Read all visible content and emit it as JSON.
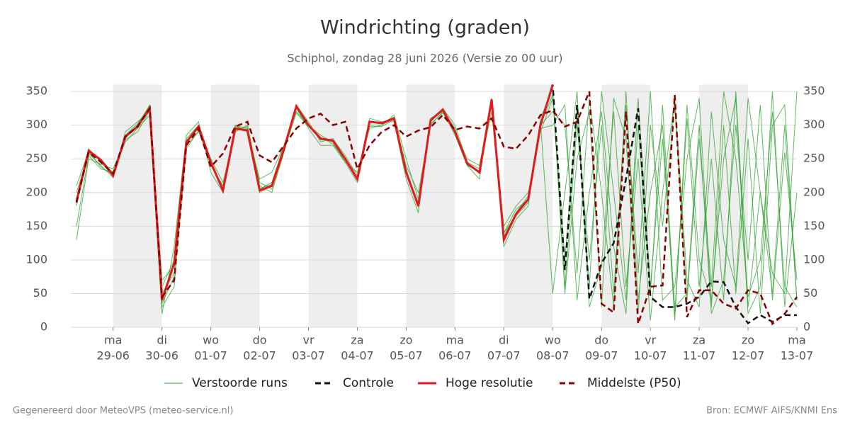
{
  "chart_data": {
    "type": "line",
    "title": "Windrichting (graden)",
    "subtitle": "Schiphol, zondag 28 juni 2026 (Versie zo 00 uur)",
    "footer_left": "Gegenereerd door MeteoVPS (meteo-service.nl)",
    "footer_right": "Bron: ECMWF AIFS/KNMI Ens",
    "categories": [
      null,
      null,
      null,
      [
        "ma",
        "29-06"
      ],
      null,
      null,
      null,
      [
        "di",
        "30-06"
      ],
      null,
      null,
      null,
      [
        "wo",
        "01-07"
      ],
      null,
      null,
      null,
      [
        "do",
        "02-07"
      ],
      null,
      null,
      null,
      [
        "vr",
        "03-07"
      ],
      null,
      null,
      null,
      [
        "za",
        "04-07"
      ],
      null,
      null,
      null,
      [
        "zo",
        "05-07"
      ],
      null,
      null,
      null,
      [
        "ma",
        "06-07"
      ],
      null,
      null,
      null,
      [
        "di",
        "07-07"
      ],
      null,
      null,
      null,
      [
        "wo",
        "08-07"
      ],
      null,
      null,
      null,
      [
        "do",
        "09-07"
      ],
      null,
      null,
      null,
      [
        "vr",
        "10-07"
      ],
      null,
      null,
      null,
      [
        "za",
        "11-07"
      ],
      null,
      null,
      null,
      [
        "zo",
        "12-07"
      ],
      null,
      null,
      null,
      [
        "ma",
        "13-07"
      ]
    ],
    "ylim": [
      0,
      360
    ],
    "yticks": [
      0,
      50,
      100,
      150,
      200,
      250,
      300,
      350
    ],
    "grid": true,
    "series": [
      {
        "name": "Verstoorde runs",
        "color": "#2ca02c",
        "style": "solid",
        "runs": [
          [
            180,
            265,
            245,
            230,
            280,
            300,
            330,
            60,
            100,
            280,
            300,
            240,
            210,
            300,
            290,
            220,
            230,
            270,
            320,
            300,
            285,
            275,
            245,
            215,
            300,
            300,
            310,
            240,
            200,
            300,
            320,
            290,
            250,
            240,
            330,
            150,
            180,
            200,
            290,
            340,
            100,
            320,
            60,
            350,
            200,
            40,
            300,
            50,
            330,
            20,
            310,
            60,
            250,
            40,
            350,
            30,
            200,
            50,
            300,
            40
          ],
          [
            200,
            258,
            240,
            222,
            290,
            305,
            320,
            30,
            60,
            270,
            290,
            250,
            215,
            290,
            300,
            210,
            200,
            260,
            330,
            305,
            275,
            280,
            255,
            225,
            310,
            305,
            305,
            220,
            170,
            310,
            320,
            285,
            240,
            220,
            335,
            120,
            160,
            180,
            310,
            355,
            50,
            250,
            320,
            30,
            340,
            280,
            20,
            300,
            150,
            330,
            40,
            280,
            60,
            350,
            250,
            45,
            100,
            320,
            60,
            30
          ],
          [
            150,
            255,
            235,
            230,
            275,
            295,
            315,
            20,
            120,
            285,
            305,
            230,
            200,
            300,
            295,
            205,
            215,
            270,
            325,
            295,
            270,
            270,
            245,
            230,
            295,
            300,
            315,
            250,
            190,
            305,
            325,
            300,
            245,
            235,
            320,
            140,
            175,
            190,
            300,
            320,
            300,
            80,
            340,
            200,
            30,
            350,
            40,
            200,
            300,
            10,
            330,
            100,
            40,
            250,
            340,
            20,
            60,
            350,
            30,
            200
          ],
          [
            210,
            262,
            250,
            228,
            285,
            302,
            328,
            50,
            80,
            275,
            295,
            245,
            205,
            298,
            292,
            200,
            210,
            265,
            330,
            300,
            280,
            275,
            250,
            218,
            305,
            302,
            312,
            235,
            180,
            310,
            322,
            295,
            240,
            232,
            340,
            135,
            170,
            195,
            305,
            50,
            200,
            350,
            30,
            90,
            320,
            60,
            250,
            10,
            200,
            340,
            70,
            30,
            320,
            130,
            60,
            340,
            200,
            80,
            50,
            350
          ],
          [
            130,
            250,
            242,
            235,
            278,
            290,
            322,
            70,
            90,
            265,
            292,
            240,
            210,
            292,
            298,
            215,
            205,
            262,
            318,
            298,
            282,
            272,
            248,
            222,
            298,
            298,
            308,
            230,
            185,
            302,
            318,
            292,
            245,
            228,
            330,
            140,
            165,
            185,
            295,
            300,
            330,
            40,
            200,
            320,
            120,
            20,
            340,
            60,
            280,
            30,
            50,
            300,
            20,
            70,
            300,
            100,
            330,
            40,
            260,
            70
          ],
          [
            190,
            260,
            238,
            226,
            282,
            298,
            325,
            35,
            75,
            272,
            298,
            242,
            204,
            295,
            294,
            206,
            212,
            268,
            326,
            302,
            278,
            278,
            250,
            220,
            304,
            304,
            310,
            228,
            178,
            307,
            322,
            290,
            244,
            230,
            338,
            128,
            168,
            188,
            300,
            345,
            60,
            300,
            100,
            300,
            50,
            330,
            80,
            350,
            40,
            60,
            250,
            340,
            30,
            300,
            50,
            280,
            20,
            300,
            330,
            40
          ]
        ]
      },
      {
        "name": "Controle",
        "color": "#111111",
        "style": "dashed",
        "values": [
          187,
          262,
          248,
          225,
          283,
          298,
          325,
          40,
          95,
          275,
          298,
          245,
          203,
          295,
          292,
          203,
          210,
          265,
          328,
          300,
          280,
          277,
          250,
          220,
          305,
          303,
          310,
          230,
          180,
          307,
          323,
          290,
          243,
          230,
          338,
          130,
          168,
          190,
          300,
          360,
          85,
          330,
          42,
          95,
          125,
          220,
          325,
          45,
          30,
          30,
          35,
          45,
          68,
          67,
          30,
          6,
          18,
          8,
          18,
          18
        ]
      },
      {
        "name": "Hoge resolutie",
        "color": "#e31a1c",
        "style": "solid",
        "values": [
          187,
          262,
          248,
          225,
          283,
          298,
          325,
          40,
          95,
          275,
          298,
          245,
          203,
          295,
          292,
          203,
          210,
          265,
          328,
          300,
          280,
          277,
          250,
          220,
          305,
          303,
          310,
          230,
          180,
          307,
          323,
          290,
          243,
          230,
          338,
          130,
          168,
          190,
          300,
          360,
          null,
          null,
          null,
          null,
          null,
          null,
          null,
          null,
          null,
          null,
          null,
          null,
          null,
          null,
          null,
          null,
          null,
          null,
          null,
          null
        ]
      },
      {
        "name": "Middelste (P50)",
        "color": "#8b0000",
        "style": "dashed",
        "values": [
          185,
          260,
          245,
          228,
          283,
          298,
          325,
          45,
          70,
          270,
          295,
          238,
          258,
          298,
          305,
          255,
          245,
          270,
          295,
          310,
          317,
          300,
          305,
          235,
          270,
          290,
          300,
          283,
          292,
          297,
          315,
          293,
          298,
          295,
          310,
          268,
          265,
          285,
          315,
          322,
          298,
          305,
          350,
          35,
          22,
          320,
          5,
          60,
          62,
          345,
          15,
          55,
          55,
          35,
          28,
          55,
          50,
          5,
          20,
          45
        ]
      }
    ]
  }
}
